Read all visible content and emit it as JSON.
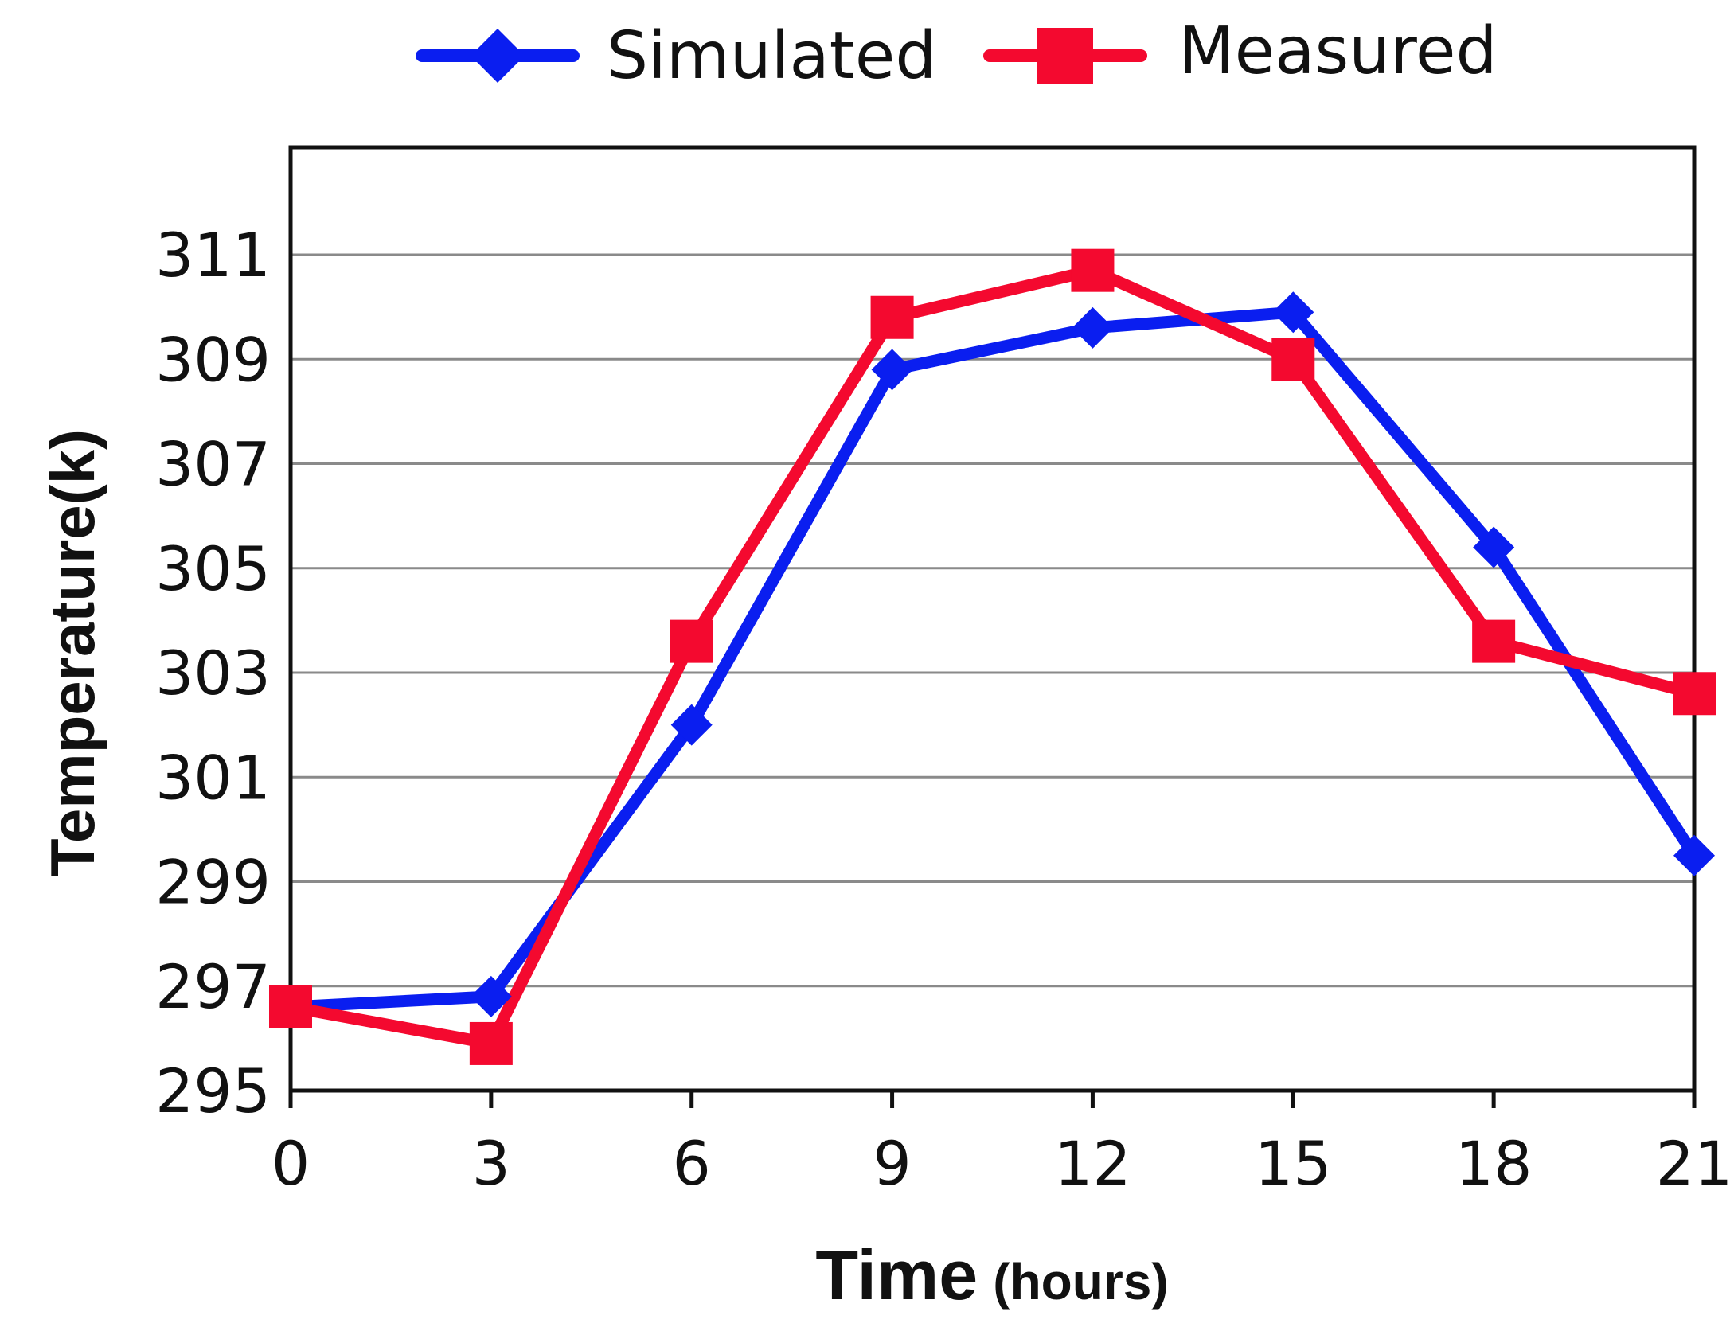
{
  "chart_data": {
    "type": "line",
    "x": [
      0,
      3,
      6,
      9,
      12,
      15,
      18,
      21
    ],
    "series": [
      {
        "name": "Simulated",
        "color": "#0a1ef0",
        "marker": "diamond",
        "values": [
          296.6,
          296.8,
          302.0,
          308.8,
          309.6,
          309.9,
          305.4,
          299.5
        ]
      },
      {
        "name": "Measured",
        "color": "#f4092f",
        "marker": "square",
        "values": [
          296.6,
          295.9,
          303.6,
          309.8,
          310.7,
          309.0,
          303.6,
          302.6
        ]
      }
    ],
    "xlabel": "Time",
    "xlabel_unit": "(hours)",
    "ylabel": "Temperature(k)",
    "xlim": [
      0,
      21
    ],
    "ylim": [
      295,
      313
    ],
    "yticks": [
      295,
      297,
      299,
      301,
      303,
      305,
      307,
      309,
      311
    ],
    "xticks": [
      0,
      3,
      6,
      9,
      12,
      15,
      18,
      21
    ],
    "grid": true,
    "legend": "top-center"
  }
}
